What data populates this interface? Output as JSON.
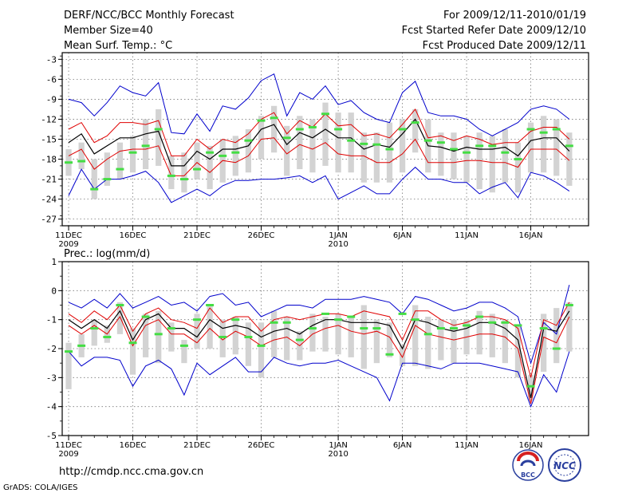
{
  "header": {
    "left": [
      "DERF/NCC/BCC Monthly Forecast",
      "Member Size=40",
      "Mean Surf. Temp.: °C"
    ],
    "right": [
      "For 2009/12/11-2010/01/19",
      "Fcst Started Refer Date 2009/12/10",
      "Fcst Produced Date 2009/12/11"
    ]
  },
  "footer": {
    "url": "http://cmdp.ncc.cma.gov.cn",
    "credit": "GrADS: COLA/IGES",
    "logo_left": "BCC",
    "logo_right": "NCC"
  },
  "colors": {
    "ensemble_mean": "#000000",
    "std_band": "#e00000",
    "min_max": "#0000cc",
    "spread_bar": "#d3d3d3",
    "median_tick": "#44dd44"
  },
  "chart_data": [
    {
      "type": "line",
      "title": "Mean Surf. Temp.: °C",
      "ylabel": "°C",
      "ylim": [
        -28,
        -2
      ],
      "yticks": [
        -3,
        -6,
        -9,
        -12,
        -15,
        -18,
        -21,
        -24,
        -27
      ],
      "xlim": [
        0.5,
        41.5
      ],
      "xticks": [
        {
          "day": 1,
          "label": "11DEC",
          "sub": "2009"
        },
        {
          "day": 6,
          "label": "16DEC"
        },
        {
          "day": 11,
          "label": "21DEC"
        },
        {
          "day": 16,
          "label": "26DEC"
        },
        {
          "day": 22,
          "label": "1JAN",
          "sub": "2010"
        },
        {
          "day": 27,
          "label": "6JAN"
        },
        {
          "day": 32,
          "label": "11JAN"
        },
        {
          "day": 37,
          "label": "16JAN"
        }
      ],
      "x": [
        1,
        2,
        3,
        4,
        5,
        6,
        7,
        8,
        9,
        10,
        11,
        12,
        13,
        14,
        15,
        16,
        17,
        18,
        19,
        20,
        21,
        22,
        23,
        24,
        25,
        26,
        27,
        28,
        29,
        30,
        31,
        32,
        33,
        34,
        35,
        36,
        37,
        38,
        39,
        40
      ],
      "series": [
        {
          "name": "max",
          "values": [
            -9,
            -9.5,
            -11.5,
            -9.5,
            -7,
            -8,
            -8.5,
            -6.5,
            -14,
            -14.2,
            -11.2,
            -13.8,
            -10,
            -10.5,
            -8.8,
            -6.2,
            -5.2,
            -11.5,
            -8,
            -9,
            -7,
            -9.8,
            -9.2,
            -11,
            -12,
            -12.5,
            -8,
            -6.3,
            -11,
            -11.5,
            -11.5,
            -12,
            -13.5,
            -14.5,
            -13.5,
            -12.5,
            -10.5,
            -10,
            -10.5,
            -12
          ]
        },
        {
          "name": "plus_std",
          "values": [
            -13.5,
            -12.5,
            -15.5,
            -14.5,
            -12.5,
            -12.5,
            -12.8,
            -12.2,
            -17.5,
            -17.5,
            -15,
            -16.5,
            -15,
            -15.5,
            -14.2,
            -12,
            -11,
            -14.2,
            -12.2,
            -13.2,
            -11.2,
            -13,
            -12.8,
            -14.5,
            -14.2,
            -14.8,
            -12.8,
            -10.5,
            -14.8,
            -14.5,
            -15.2,
            -14.5,
            -15,
            -15.8,
            -15.5,
            -15.5,
            -13.8,
            -13.2,
            -13.2,
            -15
          ]
        },
        {
          "name": "mean",
          "values": [
            -15.5,
            -14.2,
            -17.2,
            -16,
            -14.8,
            -14.8,
            -14.2,
            -13.8,
            -19,
            -19,
            -16.8,
            -18,
            -16.5,
            -16.5,
            -16,
            -13.5,
            -12.8,
            -15.8,
            -14,
            -14.8,
            -13.5,
            -14.8,
            -14.8,
            -16.5,
            -15.8,
            -16.2,
            -14.2,
            -12,
            -16,
            -16.2,
            -16.8,
            -16.2,
            -16.5,
            -16.5,
            -16.2,
            -17.5,
            -15.2,
            -14.8,
            -14.8,
            -16.8
          ]
        },
        {
          "name": "minus_std",
          "values": [
            -17.5,
            -16.5,
            -19.5,
            -18,
            -16.8,
            -16.5,
            -16.5,
            -16,
            -20.5,
            -20.5,
            -18.5,
            -20,
            -18.2,
            -18.5,
            -17.5,
            -15,
            -14.8,
            -17.2,
            -15.8,
            -16.5,
            -15.5,
            -17.2,
            -17.5,
            -17.5,
            -18.5,
            -18.5,
            -17.2,
            -15,
            -18.5,
            -18.5,
            -18.5,
            -18.2,
            -18.2,
            -18.5,
            -18.5,
            -19.2,
            -16.5,
            -16.5,
            -16.5,
            -18.2
          ]
        },
        {
          "name": "min",
          "values": [
            -23.5,
            -19.5,
            -22.5,
            -21,
            -21,
            -20.5,
            -19.8,
            -21.5,
            -24.5,
            -23.5,
            -22.5,
            -23.5,
            -22,
            -21.2,
            -21.2,
            -21,
            -21,
            -20.8,
            -20.5,
            -21.5,
            -20.5,
            -24,
            -23,
            -22,
            -23.2,
            -23.2,
            -21,
            -19.2,
            -21,
            -21,
            -21.5,
            -21.5,
            -23.2,
            -22.2,
            -21.5,
            -23.8,
            -20,
            -20.5,
            -21.5,
            -22.8
          ]
        },
        {
          "name": "spread_hi",
          "values": [
            -16.5,
            -15.5,
            -18,
            -17,
            -15.5,
            -14.5,
            -12,
            -10.5,
            -17.5,
            -17,
            -15.5,
            -16,
            -15,
            -14.5,
            -13.5,
            -11.5,
            -10,
            -13,
            -11.5,
            -12,
            -9.5,
            -11,
            -11,
            -14,
            -14,
            -12.5,
            -12,
            -10.5,
            -12,
            -14,
            -14,
            -14.5,
            -14,
            -14.5,
            -13.5,
            -15.5,
            -12.5,
            -11.5,
            -12,
            -14
          ]
        },
        {
          "name": "spread_lo",
          "values": [
            -20.5,
            -19.5,
            -24,
            -22,
            -21,
            -20,
            -19.5,
            -19,
            -22.5,
            -23,
            -21,
            -22.5,
            -21.5,
            -20.5,
            -20,
            -18,
            -17,
            -20.5,
            -19.5,
            -20,
            -19,
            -20,
            -20,
            -21.5,
            -21.5,
            -21.5,
            -20,
            -17,
            -20,
            -20.5,
            -21,
            -21.5,
            -22.5,
            -23,
            -21.5,
            -23,
            -20,
            -20,
            -20.5,
            -22
          ]
        },
        {
          "name": "median",
          "values": [
            -18.5,
            -18.3,
            -22.5,
            -21,
            -19.5,
            -17,
            -16,
            -13.5,
            -20.5,
            -21,
            -19.5,
            -17,
            -17.5,
            -17,
            -15.2,
            -12.2,
            -11.8,
            -14.8,
            -13.5,
            -13.2,
            -11.2,
            -13.5,
            -15.2,
            -15.7,
            -15.8,
            -16.5,
            -13.5,
            -12.5,
            -15.2,
            -15.5,
            -16.5,
            -17,
            -16,
            -16,
            -17,
            -18,
            -13.5,
            -14,
            -13.5,
            -16
          ]
        }
      ]
    },
    {
      "type": "line",
      "title": "Prec.: log(mm/d)",
      "ylabel": "log(mm/d)",
      "ylim": [
        -5,
        1
      ],
      "yticks": [
        1,
        0,
        -1,
        -2,
        -3,
        -4,
        -5
      ],
      "xlim": [
        0.5,
        41.5
      ],
      "xticks": [
        {
          "day": 1,
          "label": "11DEC",
          "sub": "2009"
        },
        {
          "day": 6,
          "label": "16DEC"
        },
        {
          "day": 11,
          "label": "21DEC"
        },
        {
          "day": 16,
          "label": "26DEC"
        },
        {
          "day": 22,
          "label": "1JAN",
          "sub": "2010"
        },
        {
          "day": 27,
          "label": "6JAN"
        },
        {
          "day": 32,
          "label": "11JAN"
        },
        {
          "day": 37,
          "label": "16JAN"
        }
      ],
      "x": [
        1,
        2,
        3,
        4,
        5,
        6,
        7,
        8,
        9,
        10,
        11,
        12,
        13,
        14,
        15,
        16,
        17,
        18,
        19,
        20,
        21,
        22,
        23,
        24,
        25,
        26,
        27,
        28,
        29,
        30,
        31,
        32,
        33,
        34,
        35,
        36,
        37,
        38,
        39,
        40
      ],
      "series": [
        {
          "name": "max",
          "values": [
            -0.4,
            -0.6,
            -0.3,
            -0.6,
            -0.1,
            -0.6,
            -0.4,
            -0.2,
            -0.5,
            -0.4,
            -0.7,
            -0.2,
            -0.1,
            -0.5,
            -0.4,
            -0.9,
            -0.7,
            -0.5,
            -0.5,
            -0.6,
            -0.3,
            -0.3,
            -0.3,
            -0.2,
            -0.3,
            -0.4,
            -0.8,
            -0.2,
            -0.3,
            -0.5,
            -0.7,
            -0.6,
            -0.4,
            -0.4,
            -0.6,
            -0.9,
            -2.5,
            -1.1,
            -1.5,
            0.2
          ]
        },
        {
          "name": "plus_std",
          "values": [
            -0.8,
            -1.1,
            -0.7,
            -1,
            -0.5,
            -1.4,
            -0.8,
            -0.6,
            -1,
            -1.1,
            -1.3,
            -0.6,
            -1.1,
            -0.9,
            -0.9,
            -1.4,
            -1,
            -0.9,
            -1,
            -0.9,
            -0.8,
            -0.8,
            -0.9,
            -0.7,
            -0.8,
            -0.9,
            -1.7,
            -0.7,
            -0.7,
            -1,
            -1.2,
            -1.1,
            -0.9,
            -0.9,
            -1,
            -1.3,
            -3,
            -1,
            -1.2,
            -0.4
          ]
        },
        {
          "name": "mean",
          "values": [
            -1,
            -1.3,
            -1,
            -1.3,
            -0.7,
            -1.7,
            -1,
            -0.8,
            -1.3,
            -1.3,
            -1.6,
            -1,
            -1.3,
            -1.2,
            -1.3,
            -1.6,
            -1.4,
            -1.3,
            -1.5,
            -1.2,
            -1,
            -1,
            -1.1,
            -1.1,
            -1.1,
            -1.2,
            -2,
            -1,
            -1.1,
            -1.3,
            -1.4,
            -1.3,
            -1.1,
            -1.1,
            -1.3,
            -1.7,
            -3.7,
            -1.3,
            -1.4,
            -0.7
          ]
        },
        {
          "name": "minus_std",
          "values": [
            -1.2,
            -1.5,
            -1.2,
            -1.5,
            -0.9,
            -1.9,
            -1.2,
            -1,
            -1.5,
            -1.5,
            -1.8,
            -1.3,
            -1.7,
            -1.4,
            -1.6,
            -1.9,
            -1.7,
            -1.6,
            -1.9,
            -1.5,
            -1.3,
            -1.2,
            -1.4,
            -1.5,
            -1.4,
            -1.6,
            -2.3,
            -1.2,
            -1.5,
            -1.6,
            -1.7,
            -1.6,
            -1.5,
            -1.5,
            -1.6,
            -2,
            -3.9,
            -1.6,
            -1.8,
            -0.9
          ]
        },
        {
          "name": "min",
          "values": [
            -2.1,
            -2.6,
            -2.3,
            -2.3,
            -2.4,
            -3.3,
            -2.6,
            -2.4,
            -2.7,
            -3.6,
            -2.5,
            -2.9,
            -2.6,
            -2.3,
            -2.8,
            -2.8,
            -2.3,
            -2.5,
            -2.6,
            -2.5,
            -2.5,
            -2.4,
            -2.6,
            -2.8,
            -3,
            -3.8,
            -2.5,
            -2.5,
            -2.6,
            -2.7,
            -2.5,
            -2.5,
            -2.5,
            -2.6,
            -2.7,
            -2.8,
            -4,
            -2.9,
            -3.5,
            -2.1
          ]
        },
        {
          "name": "spread_hi",
          "values": [
            -1.8,
            -1.5,
            -1,
            -1.2,
            -0.4,
            -1.3,
            -0.8,
            -0.7,
            -1.1,
            -1.7,
            -0.8,
            -0.5,
            -1,
            -0.9,
            -1.1,
            -1.1,
            -0.7,
            -0.9,
            -1.4,
            -0.8,
            -0.9,
            -0.8,
            -0.9,
            -0.5,
            -1,
            -1.1,
            -1.9,
            -0.5,
            -0.9,
            -1,
            -1,
            -1,
            -0.7,
            -0.8,
            -1,
            -1.2,
            -2.9,
            -0.8,
            -0.6,
            -0.4
          ]
        },
        {
          "name": "spread_lo",
          "values": [
            -3.4,
            -2.3,
            -1.9,
            -1.8,
            -1.5,
            -2.9,
            -2.3,
            -2.5,
            -2.1,
            -2.5,
            -2,
            -2,
            -2.3,
            -2.2,
            -2.6,
            -3,
            -2.3,
            -2.4,
            -2.4,
            -2.1,
            -2.1,
            -2.2,
            -2.3,
            -2.7,
            -2.5,
            -2.3,
            -2.6,
            -2.6,
            -2.7,
            -2.4,
            -2.5,
            -2.2,
            -2.2,
            -2.3,
            -2.5,
            -3,
            -3.8,
            -2.8,
            -2.5,
            -2.1
          ]
        },
        {
          "name": "median",
          "values": [
            -2.1,
            -1.9,
            -1.3,
            -1.6,
            -0.5,
            -1.8,
            -0.9,
            -1.5,
            -1.3,
            -1.9,
            -1,
            -0.5,
            -1.6,
            -1,
            -1.6,
            -1.9,
            -1.1,
            -1.1,
            -1.7,
            -1.3,
            -0.8,
            -1,
            -0.9,
            -1.3,
            -1.3,
            -2.2,
            -0.8,
            -1,
            -1.5,
            -1.3,
            -1.3,
            -1.2,
            -0.9,
            -1.1,
            -1.1,
            -1.2,
            -3.3,
            -1.3,
            -2,
            -0.5
          ]
        }
      ]
    }
  ]
}
